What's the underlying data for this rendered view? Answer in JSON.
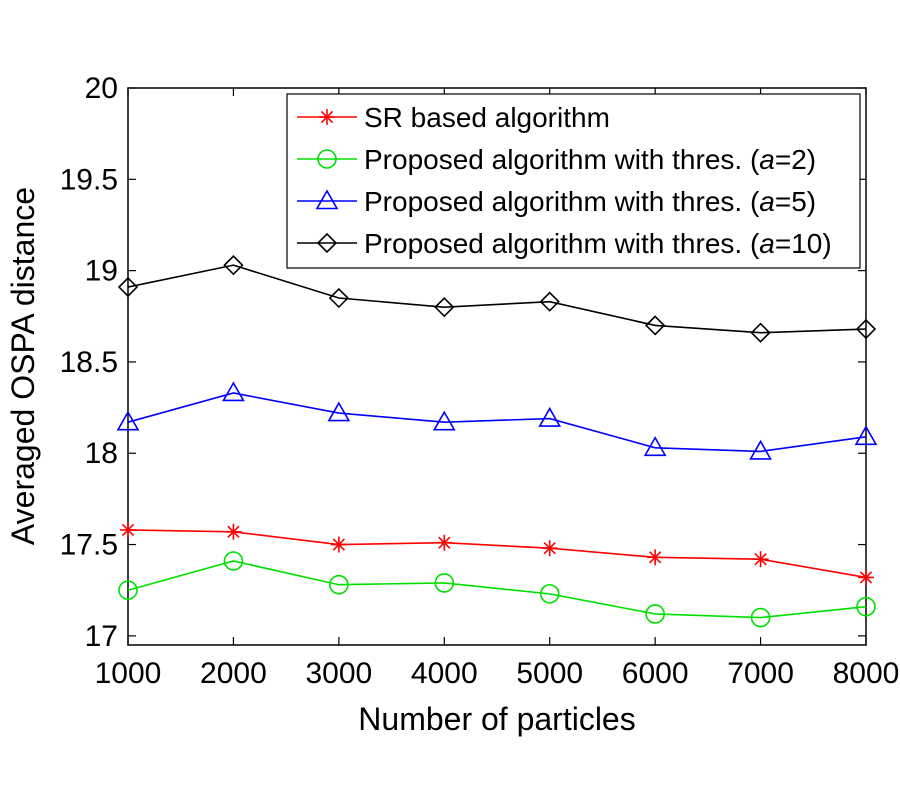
{
  "chart_data": {
    "type": "line",
    "title": "",
    "xlabel": "Number of particles",
    "ylabel": "Averaged OSPA distance",
    "x": [
      1000,
      2000,
      3000,
      4000,
      5000,
      6000,
      7000,
      8000
    ],
    "xlim": [
      1000,
      8000
    ],
    "ylim": [
      16.95,
      20
    ],
    "xticks": [
      1000,
      2000,
      3000,
      4000,
      5000,
      6000,
      7000,
      8000
    ],
    "xtick_labels": [
      "1000",
      "2000",
      "3000",
      "4000",
      "5000",
      "6000",
      "7000",
      "8000"
    ],
    "yticks": [
      17,
      17.5,
      18,
      18.5,
      19,
      19.5,
      20
    ],
    "ytick_labels": [
      "17",
      "17.5",
      "18",
      "18.5",
      "19",
      "19.5",
      "20"
    ],
    "grid": false,
    "legend_position": "top-right",
    "series": [
      {
        "name": "SR based algorithm",
        "legend_main": "SR based algorithm",
        "legend_param": "",
        "legend_value": "",
        "color": "#ff0000",
        "marker": "star",
        "values": [
          17.58,
          17.57,
          17.5,
          17.51,
          17.48,
          17.43,
          17.42,
          17.32
        ]
      },
      {
        "name": "Proposed algorithm with thres. (a=2)",
        "legend_main": "Proposed algorithm with thres. (",
        "legend_param": "a",
        "legend_value": "=2)",
        "color": "#00e000",
        "marker": "circle",
        "values": [
          17.25,
          17.41,
          17.28,
          17.29,
          17.23,
          17.12,
          17.1,
          17.16
        ]
      },
      {
        "name": "Proposed algorithm with thres. (a=5)",
        "legend_main": "Proposed algorithm with thres. (",
        "legend_param": "a",
        "legend_value": "=5)",
        "color": "#0000ff",
        "marker": "triangle",
        "values": [
          18.17,
          18.33,
          18.22,
          18.17,
          18.19,
          18.03,
          18.01,
          18.09
        ]
      },
      {
        "name": "Proposed algorithm with thres. (a=10)",
        "legend_main": "Proposed algorithm with thres. (",
        "legend_param": "a",
        "legend_value": "=10)",
        "color": "#000000",
        "marker": "diamond",
        "values": [
          18.91,
          19.03,
          18.85,
          18.8,
          18.83,
          18.7,
          18.66,
          18.68
        ]
      }
    ]
  }
}
